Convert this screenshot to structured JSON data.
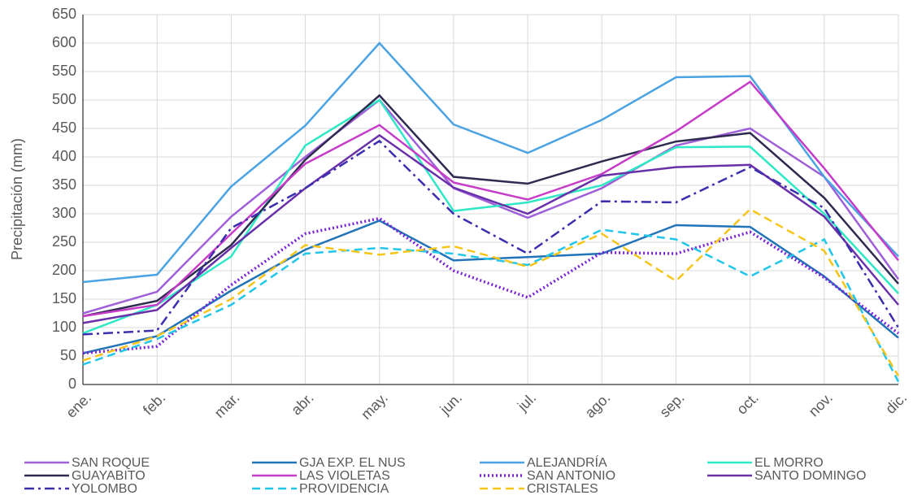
{
  "chart_data": {
    "type": "line",
    "y_label": "Precipitación (mm)",
    "categories": [
      "ene.",
      "feb.",
      "mar.",
      "abr.",
      "may.",
      "jun.",
      "jul.",
      "ago.",
      "sep.",
      "oct.",
      "nov.",
      "dic."
    ],
    "ylim": [
      0,
      650
    ],
    "yticks": [
      0,
      50,
      100,
      150,
      200,
      250,
      300,
      350,
      400,
      450,
      500,
      550,
      600,
      650
    ],
    "grid": true,
    "legend": "bottom",
    "series": [
      {
        "name": "SAN ROQUE",
        "color": "#9e5fd8",
        "dash": "solid",
        "values": [
          125,
          163,
          295,
          400,
          500,
          345,
          293,
          345,
          420,
          450,
          365,
          185
        ]
      },
      {
        "name": "GJA EXP. EL NUS",
        "color": "#2274b8",
        "dash": "solid",
        "values": [
          55,
          85,
          165,
          237,
          288,
          218,
          224,
          230,
          280,
          277,
          190,
          82
        ]
      },
      {
        "name": "ALEJANDRÍA",
        "color": "#4ba3e3",
        "dash": "solid",
        "values": [
          180,
          193,
          348,
          455,
          600,
          457,
          407,
          465,
          540,
          542,
          365,
          225
        ]
      },
      {
        "name": "EL MORRO",
        "color": "#2ee8c6",
        "dash": "solid",
        "values": [
          90,
          140,
          225,
          420,
          500,
          305,
          320,
          350,
          417,
          418,
          300,
          160
        ]
      },
      {
        "name": "GUAYABITO",
        "color": "#2e2b50",
        "dash": "solid",
        "values": [
          120,
          147,
          245,
          395,
          508,
          365,
          353,
          392,
          427,
          442,
          328,
          177
        ]
      },
      {
        "name": "LAS VIOLETAS",
        "color": "#c63cc8",
        "dash": "solid",
        "values": [
          120,
          140,
          265,
          388,
          456,
          355,
          325,
          370,
          445,
          532,
          380,
          218
        ]
      },
      {
        "name": "SAN ANTONIO",
        "color": "#7a22da",
        "dash": "dotted",
        "values": [
          55,
          67,
          175,
          265,
          292,
          200,
          153,
          232,
          230,
          268,
          188,
          90
        ]
      },
      {
        "name": "SANTO DOMINGO",
        "color": "#6a30aa",
        "dash": "solid",
        "values": [
          108,
          131,
          240,
          345,
          438,
          346,
          300,
          367,
          382,
          386,
          295,
          140
        ]
      },
      {
        "name": "YOLOMBO",
        "color": "#3b2fae",
        "dash": "dashdot",
        "values": [
          88,
          95,
          275,
          345,
          428,
          300,
          230,
          322,
          320,
          382,
          310,
          100
        ]
      },
      {
        "name": "PROVIDENCIA",
        "color": "#22c6e8",
        "dash": "dashed",
        "values": [
          35,
          80,
          140,
          230,
          240,
          230,
          210,
          272,
          255,
          190,
          255,
          5
        ]
      },
      {
        "name": "CRISTALES",
        "color": "#f6c51a",
        "dash": "dashed",
        "values": [
          42,
          85,
          150,
          245,
          228,
          243,
          207,
          265,
          182,
          308,
          235,
          15
        ]
      }
    ]
  }
}
